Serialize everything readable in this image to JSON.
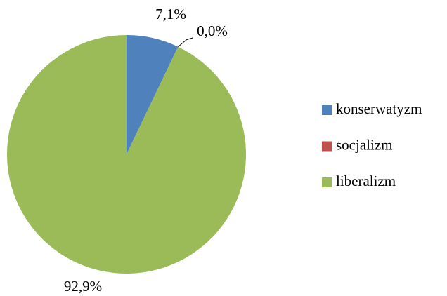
{
  "chart_data": {
    "type": "pie",
    "categories": [
      "konserwatyzm",
      "socjalizm",
      "liberalizm"
    ],
    "values": [
      7.1,
      0.0,
      92.9
    ],
    "value_labels": [
      "7,1%",
      "0,0%",
      "92,9%"
    ],
    "colors": [
      "#4f81bd",
      "#c0504d",
      "#9bbb59"
    ],
    "legend": "right"
  }
}
